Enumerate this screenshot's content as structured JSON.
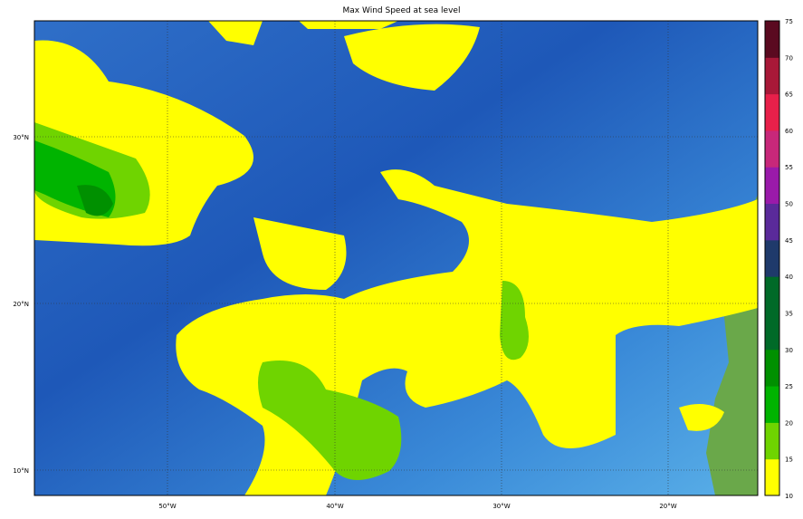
{
  "title": "Max Wind Speed at sea level",
  "map": {
    "lon_ticks": [
      "50°W",
      "40°W",
      "30°W",
      "20°W"
    ],
    "lat_ticks": [
      "30°N",
      "20°N",
      "10°N"
    ],
    "lon_range": [
      -58,
      -14.5
    ],
    "lat_range": [
      8.5,
      37
    ],
    "grid": true
  },
  "colorbar": {
    "ticks": [
      "10",
      "15",
      "20",
      "25",
      "30",
      "35",
      "40",
      "45",
      "50",
      "55",
      "60",
      "65",
      "70",
      "75"
    ],
    "colors": [
      "#ffff00",
      "#6fd400",
      "#00b400",
      "#009000",
      "#006a28",
      "#006a28",
      "#1f3a6b",
      "#5a2a9a",
      "#9a1aaa",
      "#c8287a",
      "#e8204a",
      "#a81838",
      "#5a0a20"
    ]
  }
}
